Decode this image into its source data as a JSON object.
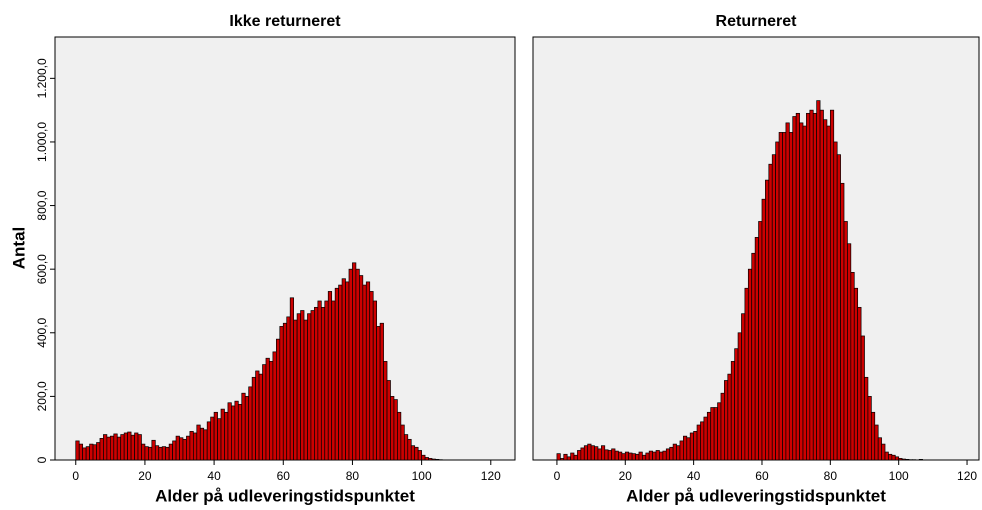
{
  "chart_data": [
    {
      "type": "histogram",
      "title": "Ikke returneret",
      "xlabel": "Alder på udleveringstidspunktet",
      "ylabel": "Antal",
      "bins": [
        0,
        1,
        2,
        3,
        4,
        5,
        6,
        7,
        8,
        9,
        10,
        11,
        12,
        13,
        14,
        15,
        16,
        17,
        18,
        19,
        20,
        21,
        22,
        23,
        24,
        25,
        26,
        27,
        28,
        29,
        30,
        31,
        32,
        33,
        34,
        35,
        36,
        37,
        38,
        39,
        40,
        41,
        42,
        43,
        44,
        45,
        46,
        47,
        48,
        49,
        50,
        51,
        52,
        53,
        54,
        55,
        56,
        57,
        58,
        59,
        60,
        61,
        62,
        63,
        64,
        65,
        66,
        67,
        68,
        69,
        70,
        71,
        72,
        73,
        74,
        75,
        76,
        77,
        78,
        79,
        80,
        81,
        82,
        83,
        84,
        85,
        86,
        87,
        88,
        89,
        90,
        91,
        92,
        93,
        94,
        95,
        96,
        97,
        98,
        99,
        100,
        101,
        102,
        103,
        104,
        105,
        106,
        107
      ],
      "counts": [
        60,
        50,
        38,
        42,
        50,
        48,
        55,
        68,
        80,
        72,
        75,
        82,
        72,
        80,
        85,
        88,
        78,
        85,
        80,
        50,
        42,
        40,
        62,
        45,
        40,
        42,
        40,
        50,
        60,
        75,
        70,
        65,
        75,
        90,
        85,
        110,
        100,
        95,
        120,
        135,
        150,
        130,
        160,
        150,
        180,
        170,
        185,
        175,
        210,
        200,
        230,
        260,
        280,
        270,
        300,
        320,
        310,
        340,
        380,
        420,
        430,
        450,
        510,
        440,
        460,
        470,
        440,
        460,
        470,
        480,
        500,
        480,
        500,
        530,
        500,
        540,
        550,
        570,
        560,
        600,
        620,
        600,
        580,
        550,
        560,
        530,
        500,
        420,
        430,
        310,
        250,
        200,
        190,
        150,
        110,
        80,
        65,
        45,
        40,
        30,
        15,
        8,
        5,
        3,
        2,
        1,
        0
      ],
      "color": "#cc0000",
      "xlim": [
        -6,
        127
      ],
      "ylim": [
        0,
        1330
      ],
      "xticks": [
        0,
        20,
        40,
        60,
        80,
        100,
        120
      ],
      "yticks": [
        {
          "value": 0,
          "label": "0"
        },
        {
          "value": 200,
          "label": "200,0"
        },
        {
          "value": 400,
          "label": "400,0"
        },
        {
          "value": 600,
          "label": "600,0"
        },
        {
          "value": 800,
          "label": "800,0"
        },
        {
          "value": 1000,
          "label": "1.000,0"
        },
        {
          "value": 1200,
          "label": "1.200,0"
        }
      ]
    },
    {
      "type": "histogram",
      "title": "Returneret",
      "xlabel": "Alder på udleveringstidspunktet",
      "bins": [
        0,
        1,
        2,
        3,
        4,
        5,
        6,
        7,
        8,
        9,
        10,
        11,
        12,
        13,
        14,
        15,
        16,
        17,
        18,
        19,
        20,
        21,
        22,
        23,
        24,
        25,
        26,
        27,
        28,
        29,
        30,
        31,
        32,
        33,
        34,
        35,
        36,
        37,
        38,
        39,
        40,
        41,
        42,
        43,
        44,
        45,
        46,
        47,
        48,
        49,
        50,
        51,
        52,
        53,
        54,
        55,
        56,
        57,
        58,
        59,
        60,
        61,
        62,
        63,
        64,
        65,
        66,
        67,
        68,
        69,
        70,
        71,
        72,
        73,
        74,
        75,
        76,
        77,
        78,
        79,
        80,
        81,
        82,
        83,
        84,
        85,
        86,
        87,
        88,
        89,
        90,
        91,
        92,
        93,
        94,
        95,
        96,
        97,
        98,
        99,
        100,
        101,
        102,
        103,
        104,
        105,
        106,
        107
      ],
      "counts": [
        20,
        5,
        18,
        10,
        22,
        15,
        30,
        38,
        45,
        50,
        45,
        42,
        35,
        45,
        32,
        30,
        35,
        28,
        25,
        20,
        25,
        22,
        20,
        18,
        25,
        15,
        22,
        28,
        25,
        30,
        25,
        28,
        35,
        40,
        50,
        45,
        60,
        75,
        70,
        85,
        90,
        110,
        120,
        135,
        150,
        165,
        165,
        180,
        210,
        250,
        270,
        310,
        350,
        400,
        460,
        540,
        600,
        650,
        700,
        750,
        820,
        880,
        930,
        960,
        1000,
        1030,
        1030,
        1060,
        1030,
        1080,
        1090,
        1060,
        1050,
        1090,
        1100,
        1090,
        1130,
        1100,
        1070,
        1050,
        1100,
        1000,
        960,
        870,
        750,
        680,
        590,
        540,
        480,
        390,
        260,
        200,
        150,
        110,
        70,
        50,
        25,
        18,
        15,
        10,
        5,
        3,
        2,
        1,
        1,
        0,
        2
      ],
      "color": "#cc0000",
      "xlim": [
        -7,
        123.5
      ],
      "ylim": [
        0,
        1330
      ],
      "xticks": [
        0,
        20,
        40,
        60,
        80,
        100,
        120
      ]
    }
  ]
}
